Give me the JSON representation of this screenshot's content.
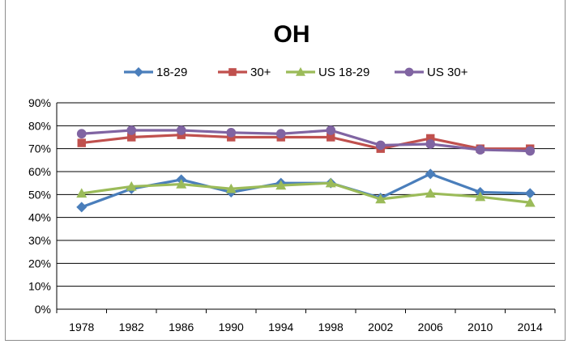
{
  "chart_data": {
    "type": "line",
    "title": "OH",
    "xlabel": "",
    "ylabel": "",
    "categories": [
      "1978",
      "1982",
      "1986",
      "1990",
      "1994",
      "1998",
      "2002",
      "2006",
      "2010",
      "2014"
    ],
    "y_ticks": [
      "0%",
      "10%",
      "20%",
      "30%",
      "40%",
      "50%",
      "60%",
      "70%",
      "80%",
      "90%"
    ],
    "ylim": [
      0,
      90
    ],
    "grid": "horizontal",
    "legend_position": "top",
    "series": [
      {
        "name": "18-29",
        "color": "#4a7ebb",
        "marker": "diamond",
        "values": [
          44.5,
          52.5,
          56.5,
          51,
          55,
          55,
          48.5,
          59,
          51,
          50.5
        ]
      },
      {
        "name": "30+",
        "color": "#c0504d",
        "marker": "square",
        "values": [
          72.5,
          75,
          76,
          75,
          75,
          75,
          70,
          74.5,
          70,
          70
        ]
      },
      {
        "name": "US 18-29",
        "color": "#9bbb59",
        "marker": "triangle",
        "values": [
          50.5,
          53.5,
          54.5,
          52.5,
          54,
          55,
          48,
          50.5,
          49,
          46.5
        ]
      },
      {
        "name": "US 30+",
        "color": "#8064a2",
        "marker": "circle",
        "values": [
          76.5,
          78,
          78,
          77,
          76.5,
          78,
          71.5,
          72,
          69.5,
          69
        ]
      }
    ]
  }
}
